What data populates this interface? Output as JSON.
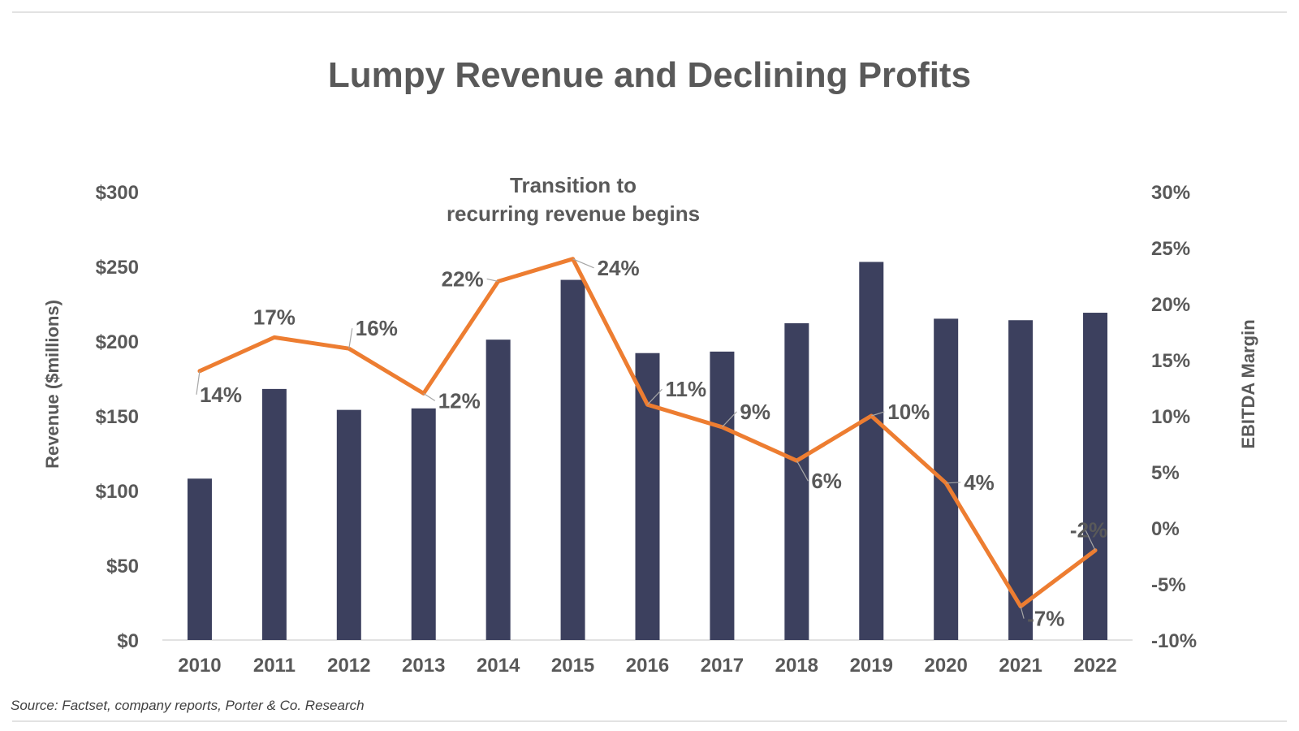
{
  "chart_data": {
    "type": "bar",
    "title": "Lumpy Revenue and Declining Profits",
    "annotation": [
      "Transition to",
      "recurring revenue begins"
    ],
    "categories": [
      "2010",
      "2011",
      "2012",
      "2013",
      "2014",
      "2015",
      "2016",
      "2017",
      "2018",
      "2019",
      "2020",
      "2021",
      "2022"
    ],
    "series": [
      {
        "type": "bar",
        "axis": "left",
        "values": [
          108,
          168,
          154,
          155,
          201,
          241,
          192,
          193,
          212,
          253,
          215,
          214,
          219
        ]
      },
      {
        "type": "line",
        "axis": "right",
        "values": [
          14,
          17,
          16,
          12,
          22,
          24,
          11,
          9,
          6,
          10,
          4,
          -7,
          -2
        ],
        "data_labels": [
          "14%",
          "17%",
          "16%",
          "12%",
          "22%",
          "24%",
          "11%",
          "9%",
          "6%",
          "10%",
          "4%",
          "-7%",
          "-2%"
        ]
      }
    ],
    "ylabel": "Revenue ($millions)",
    "y2label": "EBITDA Margin",
    "ylim": [
      0,
      300
    ],
    "y2lim": [
      -10,
      30
    ],
    "yticks": [
      "$0",
      "$50",
      "$100",
      "$150",
      "$200",
      "$250",
      "$300"
    ],
    "y2ticks": [
      "-10%",
      "-5%",
      "0%",
      "5%",
      "10%",
      "15%",
      "20%",
      "25%",
      "30%"
    ],
    "colors": {
      "bar": "#3c405e",
      "line": "#ed7d31",
      "text": "#595959",
      "leader": "#a6a6a6"
    },
    "grid": false,
    "legend": "none"
  },
  "source": "Source: Factset, company reports, Porter & Co. Research"
}
